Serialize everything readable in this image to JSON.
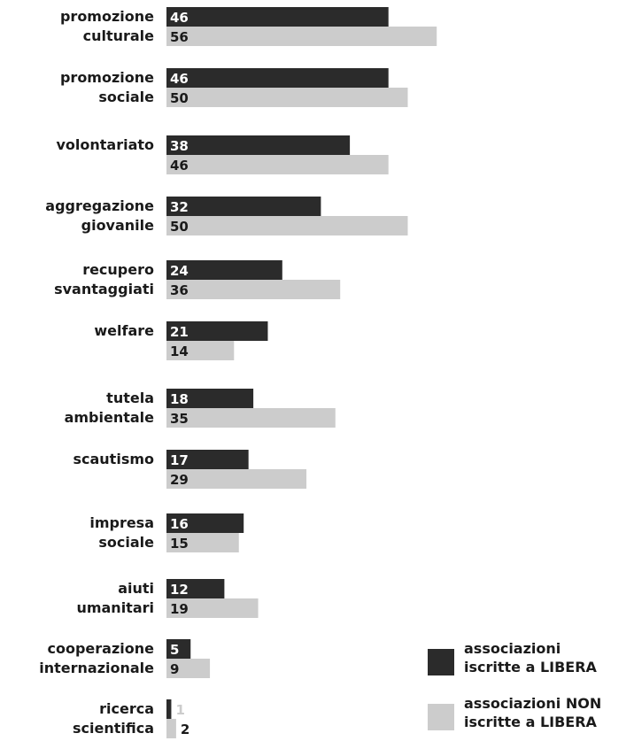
{
  "chart_data": {
    "type": "bar",
    "orientation": "horizontal",
    "categories": [
      [
        "promozione",
        "culturale"
      ],
      [
        "promozione",
        "sociale"
      ],
      [
        "volontariato"
      ],
      [
        "aggregazione",
        "giovanile"
      ],
      [
        "recupero",
        "svantaggiati"
      ],
      [
        "welfare"
      ],
      [
        "tutela",
        "ambientale"
      ],
      [
        "scautismo"
      ],
      [
        "impresa",
        "sociale"
      ],
      [
        "aiuti",
        "umanitari"
      ],
      [
        "cooperazione",
        "internazionale"
      ],
      [
        "ricerca",
        "scientifica"
      ]
    ],
    "series": [
      {
        "name": "associazioni iscritte a LIBERA",
        "color": "#2b2b2b",
        "values": [
          46,
          46,
          38,
          32,
          24,
          21,
          18,
          17,
          16,
          12,
          5,
          1
        ]
      },
      {
        "name": "associazioni NON iscritte a LIBERA",
        "color": "#cccccc",
        "values": [
          56,
          50,
          46,
          50,
          36,
          14,
          35,
          29,
          15,
          19,
          9,
          2
        ]
      }
    ],
    "xlim": [
      0,
      56
    ],
    "legend": {
      "position": "bottom-right",
      "entries": [
        [
          "associazioni",
          "iscritte a LIBERA"
        ],
        [
          "associazioni NON",
          "iscritte a LIBERA"
        ]
      ]
    },
    "grid": false
  }
}
